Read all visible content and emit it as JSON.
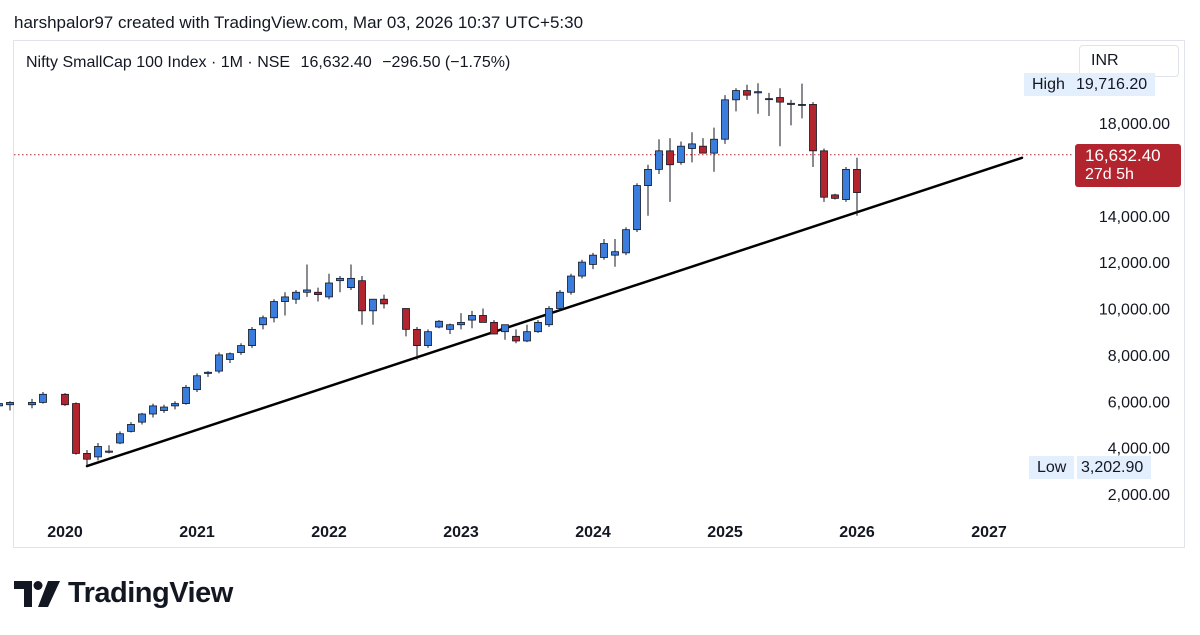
{
  "attribution": "harshpalor97 created with TradingView.com, Mar 03, 2026 10:37 UTC+5:30",
  "legend": {
    "symbol": "Nifty SmallCap 100 Index · 1M · NSE",
    "last": "16,632.40",
    "change": "−296.50 (−1.75%)"
  },
  "currency": "INR",
  "price_tag": {
    "price": "16,632.40",
    "countdown": "27d 5h"
  },
  "high_label": {
    "label": "High",
    "value": "19,716.20"
  },
  "low_label": {
    "label": "Low",
    "value": "3,202.90"
  },
  "brand": "TradingView",
  "colors": {
    "up": "#3b7ddd",
    "down": "#b2242e",
    "trendline": "#000000",
    "grid_text": "#131722"
  },
  "chart_data": {
    "type": "candlestick",
    "timeframe": "1M",
    "y_ticks": [
      {
        "value": 18000,
        "label": "18,000.00"
      },
      {
        "value": 14000,
        "label": "14,000.00"
      },
      {
        "value": 12000,
        "label": "12,000.00"
      },
      {
        "value": 10000,
        "label": "10,000.00"
      },
      {
        "value": 8000,
        "label": "8,000.00"
      },
      {
        "value": 6000,
        "label": "6,000.00"
      },
      {
        "value": 4000,
        "label": "4,000.00"
      },
      {
        "value": 2000,
        "label": "2,000.00"
      }
    ],
    "x_ticks": [
      {
        "date": "2020-01",
        "label": "2020"
      },
      {
        "date": "2021-01",
        "label": "2021"
      },
      {
        "date": "2022-01",
        "label": "2022"
      },
      {
        "date": "2023-01",
        "label": "2023"
      },
      {
        "date": "2024-01",
        "label": "2024"
      },
      {
        "date": "2025-01",
        "label": "2025"
      },
      {
        "date": "2026-01",
        "label": "2026"
      },
      {
        "date": "2027-01",
        "label": "2027"
      }
    ],
    "y_range": [
      1500,
      19800
    ],
    "x_range": [
      "2018-11",
      "2027-10"
    ],
    "last_price": 16632.4,
    "trendline": {
      "from": {
        "date": "2020-03",
        "value": 3202.9
      },
      "to": {
        "date": "2027-04",
        "value": 16500
      }
    },
    "candles": [
      {
        "date": "2019-03",
        "o": 5300,
        "h": 5500,
        "l": 5050,
        "c": 5400
      },
      {
        "date": "2019-04",
        "o": 5420,
        "h": 5800,
        "l": 5300,
        "c": 5600
      },
      {
        "date": "2019-05",
        "o": 5600,
        "h": 5800,
        "l": 5300,
        "c": 5750
      },
      {
        "date": "2019-06",
        "o": 5700,
        "h": 5900,
        "l": 5500,
        "c": 5800
      },
      {
        "date": "2019-07",
        "o": 5800,
        "h": 6000,
        "l": 5700,
        "c": 5900
      },
      {
        "date": "2019-08",
        "o": 5850,
        "h": 6000,
        "l": 5600,
        "c": 5950
      },
      {
        "date": "2019-10",
        "o": 5850,
        "h": 6100,
        "l": 5700,
        "c": 5950
      },
      {
        "date": "2019-11",
        "o": 5950,
        "h": 6400,
        "l": 5900,
        "c": 6300
      },
      {
        "date": "2020-01",
        "o": 6300,
        "h": 6350,
        "l": 5800,
        "c": 5850
      },
      {
        "date": "2020-02",
        "o": 5900,
        "h": 5950,
        "l": 3700,
        "c": 3750
      },
      {
        "date": "2020-03",
        "o": 3750,
        "h": 3900,
        "l": 3202.9,
        "c": 3500
      },
      {
        "date": "2020-04",
        "o": 3600,
        "h": 4200,
        "l": 3450,
        "c": 4050
      },
      {
        "date": "2020-05",
        "o": 3800,
        "h": 4100,
        "l": 3750,
        "c": 3850
      },
      {
        "date": "2020-06",
        "o": 4200,
        "h": 4700,
        "l": 4150,
        "c": 4600
      },
      {
        "date": "2020-07",
        "o": 4700,
        "h": 5100,
        "l": 4650,
        "c": 5000
      },
      {
        "date": "2020-08",
        "o": 5100,
        "h": 5500,
        "l": 5000,
        "c": 5450
      },
      {
        "date": "2020-09",
        "o": 5450,
        "h": 5900,
        "l": 5300,
        "c": 5800
      },
      {
        "date": "2020-10",
        "o": 5600,
        "h": 5850,
        "l": 5500,
        "c": 5750
      },
      {
        "date": "2020-11",
        "o": 5800,
        "h": 6000,
        "l": 5650,
        "c": 5900
      },
      {
        "date": "2020-12",
        "o": 5900,
        "h": 6700,
        "l": 5850,
        "c": 6600
      },
      {
        "date": "2021-01",
        "o": 6500,
        "h": 7200,
        "l": 6400,
        "c": 7100
      },
      {
        "date": "2021-02",
        "o": 7200,
        "h": 7300,
        "l": 7050,
        "c": 7250
      },
      {
        "date": "2021-03",
        "o": 7300,
        "h": 8100,
        "l": 7200,
        "c": 8000
      },
      {
        "date": "2021-04",
        "o": 7800,
        "h": 8100,
        "l": 7650,
        "c": 8050
      },
      {
        "date": "2021-05",
        "o": 8100,
        "h": 8500,
        "l": 8000,
        "c": 8400
      },
      {
        "date": "2021-06",
        "o": 8400,
        "h": 9200,
        "l": 8300,
        "c": 9100
      },
      {
        "date": "2021-07",
        "o": 9300,
        "h": 9700,
        "l": 9100,
        "c": 9600
      },
      {
        "date": "2021-08",
        "o": 9600,
        "h": 10400,
        "l": 9400,
        "c": 10300
      },
      {
        "date": "2021-09",
        "o": 10300,
        "h": 10700,
        "l": 9700,
        "c": 10500
      },
      {
        "date": "2021-10",
        "o": 10400,
        "h": 10800,
        "l": 10200,
        "c": 10700
      },
      {
        "date": "2021-11",
        "o": 10700,
        "h": 11900,
        "l": 10500,
        "c": 10800
      },
      {
        "date": "2021-12",
        "o": 10700,
        "h": 10900,
        "l": 10300,
        "c": 10600
      },
      {
        "date": "2022-01",
        "o": 10500,
        "h": 11500,
        "l": 10400,
        "c": 11100
      },
      {
        "date": "2022-02",
        "o": 11200,
        "h": 11400,
        "l": 10700,
        "c": 11300
      },
      {
        "date": "2022-03",
        "o": 10900,
        "h": 11900,
        "l": 10800,
        "c": 11300
      },
      {
        "date": "2022-04",
        "o": 11200,
        "h": 11400,
        "l": 9300,
        "c": 9900
      },
      {
        "date": "2022-05",
        "o": 9900,
        "h": 10400,
        "l": 9300,
        "c": 10400
      },
      {
        "date": "2022-06",
        "o": 10400,
        "h": 10600,
        "l": 10000,
        "c": 10200
      },
      {
        "date": "2022-08",
        "o": 10000,
        "h": 10000,
        "l": 8800,
        "c": 9100
      },
      {
        "date": "2022-09",
        "o": 9100,
        "h": 9200,
        "l": 7800,
        "c": 8400
      },
      {
        "date": "2022-10",
        "o": 8400,
        "h": 9100,
        "l": 8300,
        "c": 9000
      },
      {
        "date": "2022-11",
        "o": 9200,
        "h": 9500,
        "l": 9150,
        "c": 9450
      },
      {
        "date": "2022-12",
        "o": 9100,
        "h": 9350,
        "l": 8900,
        "c": 9300
      },
      {
        "date": "2023-01",
        "o": 9300,
        "h": 9800,
        "l": 9100,
        "c": 9400
      },
      {
        "date": "2023-02",
        "o": 9500,
        "h": 9900,
        "l": 9150,
        "c": 9700
      },
      {
        "date": "2023-03",
        "o": 9700,
        "h": 10000,
        "l": 9400,
        "c": 9400
      },
      {
        "date": "2023-04",
        "o": 9400,
        "h": 9500,
        "l": 8900,
        "c": 8900
      },
      {
        "date": "2023-05",
        "o": 9000,
        "h": 9300,
        "l": 8650,
        "c": 9300
      },
      {
        "date": "2023-06",
        "o": 8800,
        "h": 9100,
        "l": 8500,
        "c": 8600
      },
      {
        "date": "2023-07",
        "o": 8600,
        "h": 9300,
        "l": 8550,
        "c": 9000
      },
      {
        "date": "2023-08",
        "o": 9000,
        "h": 9500,
        "l": 8950,
        "c": 9400
      },
      {
        "date": "2023-09",
        "o": 9300,
        "h": 10100,
        "l": 9200,
        "c": 10000
      },
      {
        "date": "2023-10",
        "o": 10000,
        "h": 10800,
        "l": 9900,
        "c": 10700
      },
      {
        "date": "2023-11",
        "o": 10700,
        "h": 11500,
        "l": 10600,
        "c": 11400
      },
      {
        "date": "2023-12",
        "o": 11400,
        "h": 12100,
        "l": 11300,
        "c": 12000
      },
      {
        "date": "2024-01",
        "o": 11900,
        "h": 12400,
        "l": 11700,
        "c": 12300
      },
      {
        "date": "2024-02",
        "o": 12200,
        "h": 13000,
        "l": 12100,
        "c": 12800
      },
      {
        "date": "2024-03",
        "o": 12300,
        "h": 13000,
        "l": 11800,
        "c": 12450
      },
      {
        "date": "2024-04",
        "o": 12400,
        "h": 13500,
        "l": 12300,
        "c": 13400
      },
      {
        "date": "2024-05",
        "o": 13400,
        "h": 15400,
        "l": 13300,
        "c": 15300
      },
      {
        "date": "2024-06",
        "o": 15300,
        "h": 16200,
        "l": 14000,
        "c": 16000
      },
      {
        "date": "2024-07",
        "o": 16000,
        "h": 17300,
        "l": 15800,
        "c": 16800
      },
      {
        "date": "2024-08",
        "o": 16800,
        "h": 17350,
        "l": 14600,
        "c": 16200
      },
      {
        "date": "2024-09",
        "o": 16300,
        "h": 17200,
        "l": 16200,
        "c": 17000
      },
      {
        "date": "2024-10",
        "o": 16900,
        "h": 17600,
        "l": 16300,
        "c": 17100
      },
      {
        "date": "2024-11",
        "o": 17000,
        "h": 17350,
        "l": 16850,
        "c": 16700
      },
      {
        "date": "2024-12",
        "o": 16700,
        "h": 17800,
        "l": 15900,
        "c": 17300
      },
      {
        "date": "2025-01",
        "o": 17300,
        "h": 19200,
        "l": 17100,
        "c": 19000
      },
      {
        "date": "2025-02",
        "o": 19000,
        "h": 19500,
        "l": 18500,
        "c": 19400
      },
      {
        "date": "2025-03",
        "o": 19400,
        "h": 19650,
        "l": 19000,
        "c": 19200
      },
      {
        "date": "2025-04",
        "o": 19300,
        "h": 19716.2,
        "l": 18400,
        "c": 19350
      },
      {
        "date": "2025-05",
        "o": 19050,
        "h": 19300,
        "l": 18300,
        "c": 19050
      },
      {
        "date": "2025-06",
        "o": 19100,
        "h": 19500,
        "l": 17000,
        "c": 18900
      },
      {
        "date": "2025-07",
        "o": 18800,
        "h": 19000,
        "l": 17900,
        "c": 18850
      },
      {
        "date": "2025-08",
        "o": 18800,
        "h": 19700,
        "l": 18200,
        "c": 18800
      },
      {
        "date": "2025-09",
        "o": 18800,
        "h": 18900,
        "l": 16100,
        "c": 16800
      },
      {
        "date": "2025-10",
        "o": 16800,
        "h": 16900,
        "l": 14600,
        "c": 14800
      },
      {
        "date": "2025-11",
        "o": 14900,
        "h": 14950,
        "l": 14700,
        "c": 14750
      },
      {
        "date": "2025-12",
        "o": 14700,
        "h": 16100,
        "l": 14600,
        "c": 16000
      },
      {
        "date": "2026-01",
        "o": 16000,
        "h": 16500,
        "l": 14000,
        "c": 15000
      }
    ]
  }
}
